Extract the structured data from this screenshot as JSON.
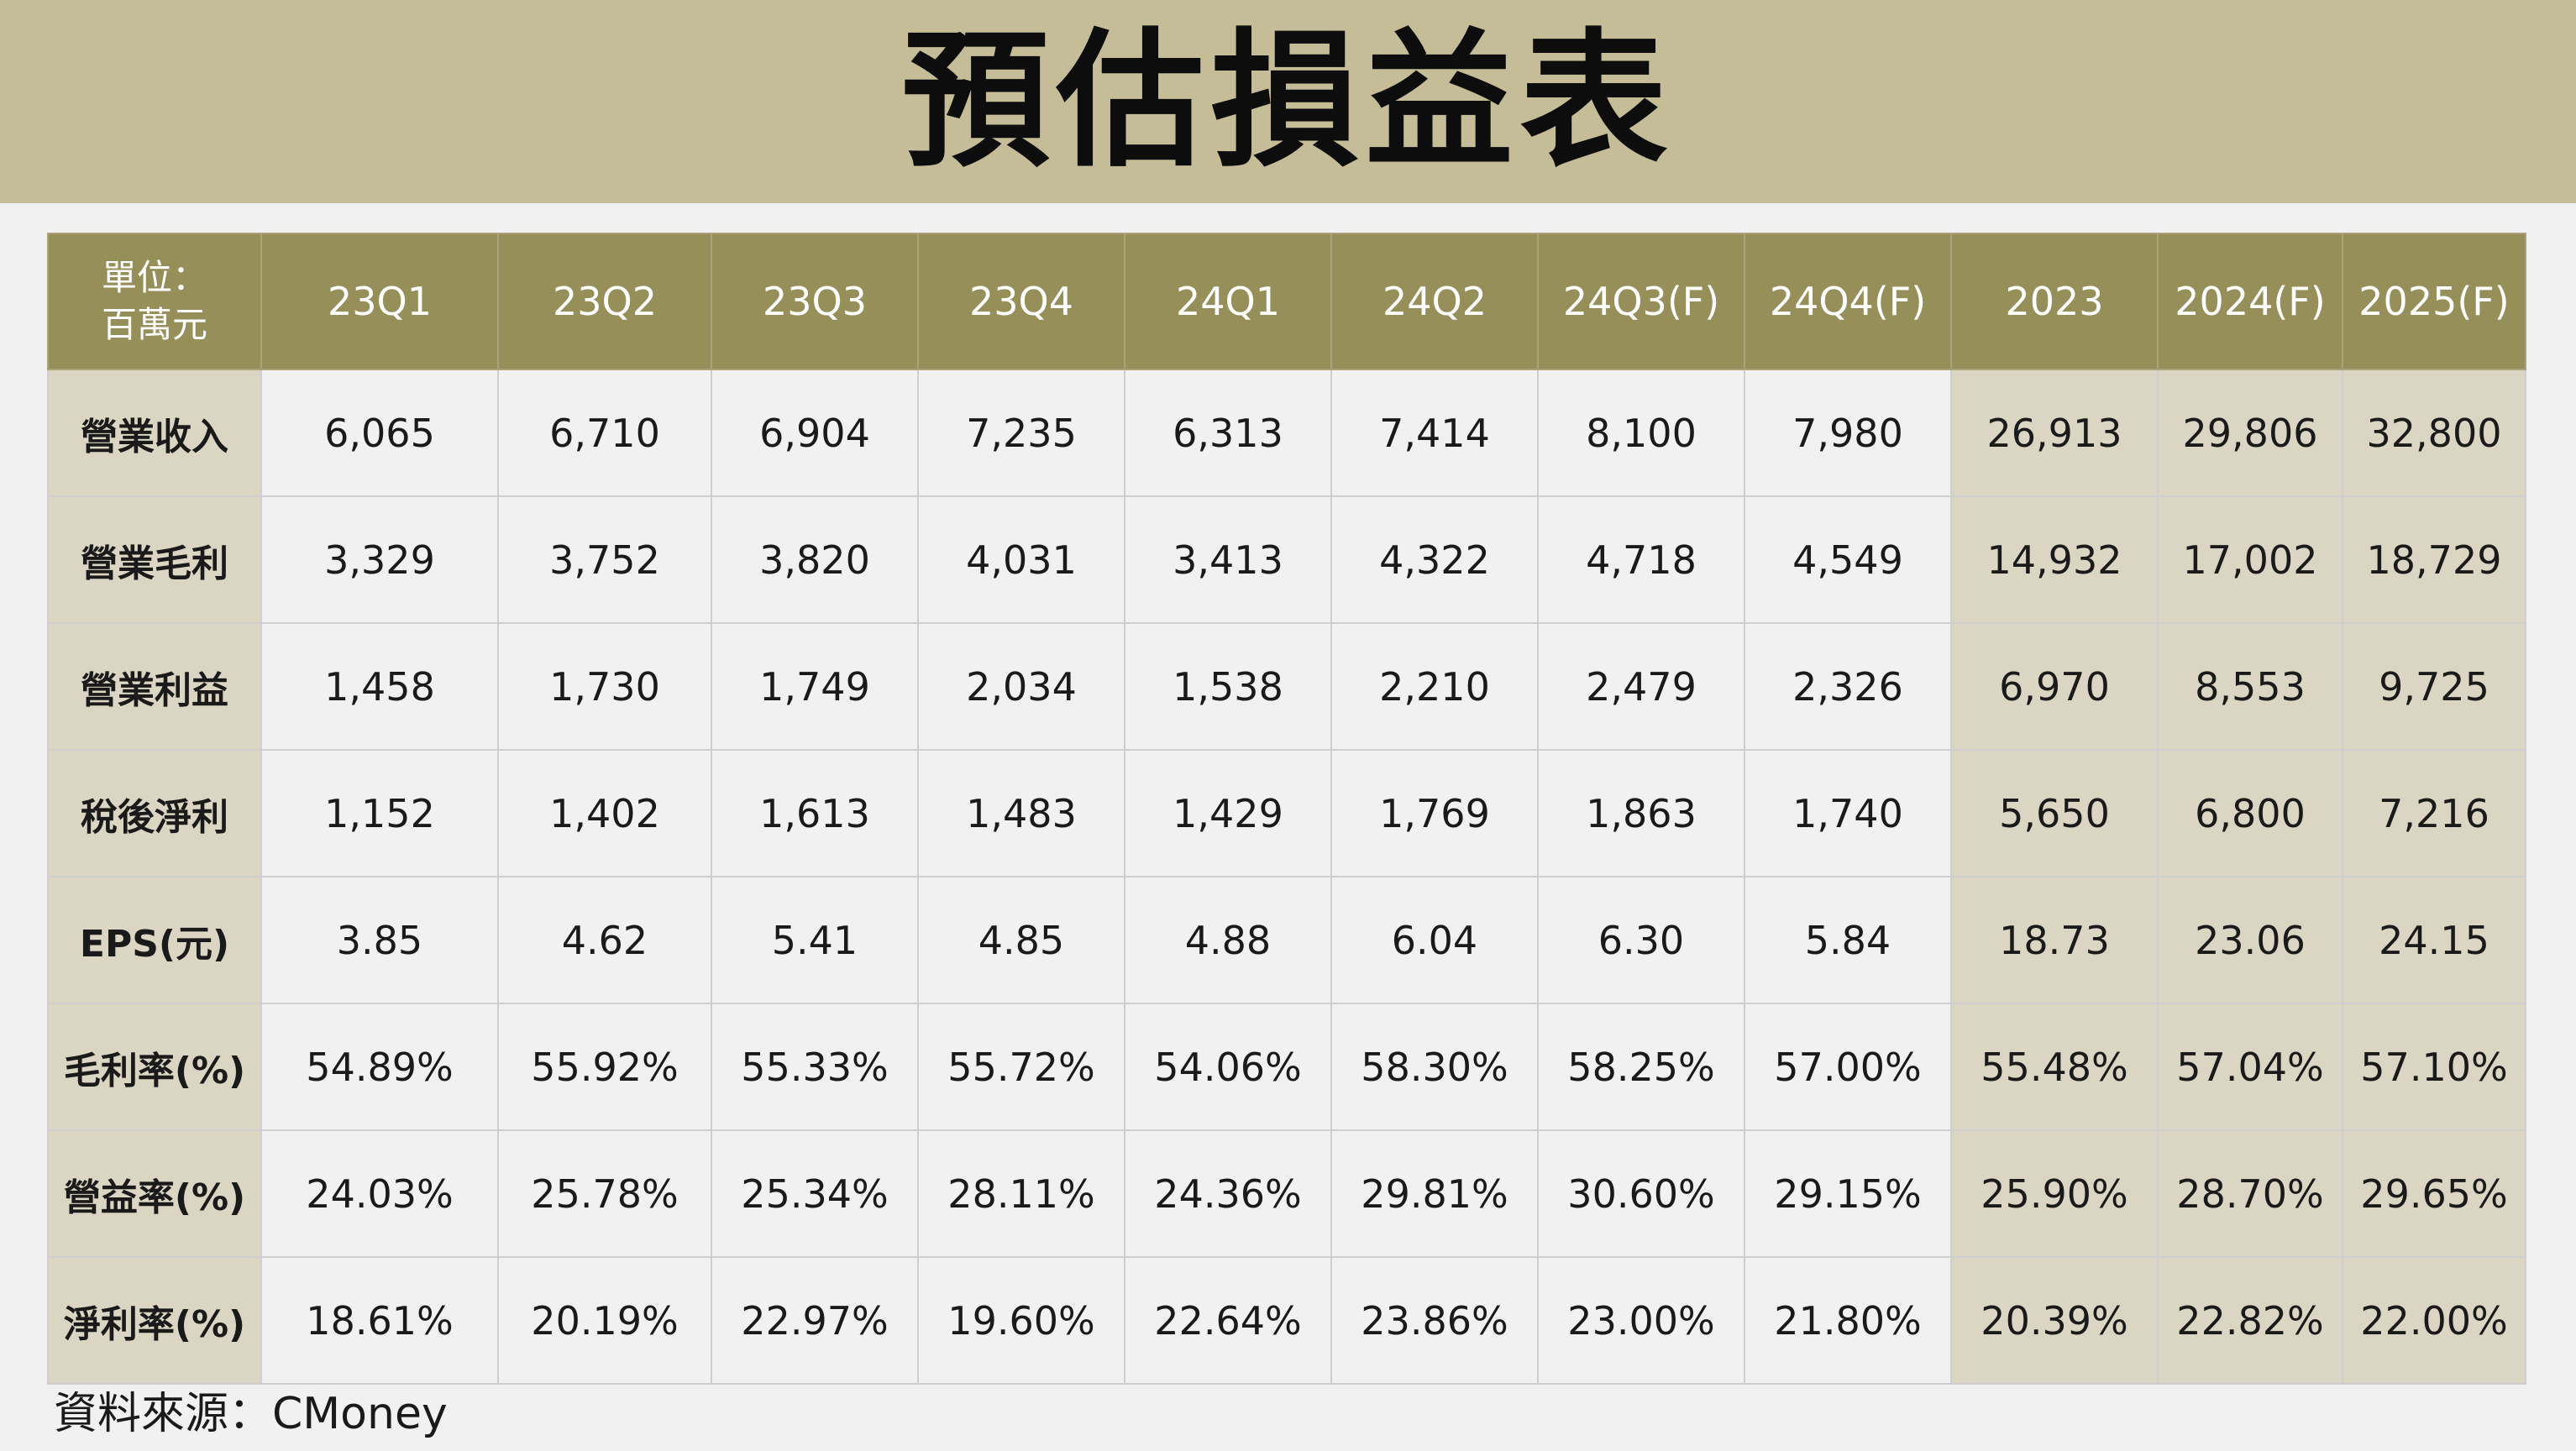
{
  "title": "預估損益表",
  "table": {
    "unit_line1": "單位：",
    "unit_line2": "百萬元",
    "columns": [
      "23Q1",
      "23Q2",
      "23Q3",
      "23Q4",
      "24Q1",
      "24Q2",
      "24Q3(F)",
      "24Q4(F)",
      "2023",
      "2024(F)",
      "2025(F)"
    ],
    "rows": [
      {
        "label": "營業收入",
        "values": [
          "6,065",
          "6,710",
          "6,904",
          "7,235",
          "6,313",
          "7,414",
          "8,100",
          "7,980",
          "26,913",
          "29,806",
          "32,800"
        ]
      },
      {
        "label": "營業毛利",
        "values": [
          "3,329",
          "3,752",
          "3,820",
          "4,031",
          "3,413",
          "4,322",
          "4,718",
          "4,549",
          "14,932",
          "17,002",
          "18,729"
        ]
      },
      {
        "label": "營業利益",
        "values": [
          "1,458",
          "1,730",
          "1,749",
          "2,034",
          "1,538",
          "2,210",
          "2,479",
          "2,326",
          "6,970",
          "8,553",
          "9,725"
        ]
      },
      {
        "label": "稅後淨利",
        "values": [
          "1,152",
          "1,402",
          "1,613",
          "1,483",
          "1,429",
          "1,769",
          "1,863",
          "1,740",
          "5,650",
          "6,800",
          "7,216"
        ]
      },
      {
        "label": "EPS(元)",
        "values": [
          "3.85",
          "4.62",
          "5.41",
          "4.85",
          "4.88",
          "6.04",
          "6.30",
          "5.84",
          "18.73",
          "23.06",
          "24.15"
        ]
      },
      {
        "label": "毛利率(%)",
        "values": [
          "54.89%",
          "55.92%",
          "55.33%",
          "55.72%",
          "54.06%",
          "58.30%",
          "58.25%",
          "57.00%",
          "55.48%",
          "57.04%",
          "57.10%"
        ]
      },
      {
        "label": "營益率(%)",
        "values": [
          "24.03%",
          "25.78%",
          "25.34%",
          "28.11%",
          "24.36%",
          "29.81%",
          "30.60%",
          "29.15%",
          "25.90%",
          "28.70%",
          "29.65%"
        ]
      },
      {
        "label": "淨利率(%)",
        "values": [
          "18.61%",
          "20.19%",
          "22.97%",
          "19.60%",
          "22.64%",
          "23.86%",
          "23.00%",
          "21.80%",
          "20.39%",
          "22.82%",
          "22.00%"
        ]
      }
    ]
  },
  "source": "資料來源：CMoney",
  "colors": {
    "header_band": "#c5bc98",
    "table_header": "#978f59",
    "label_and_annual_cells": "#dad6c3",
    "quarter_cells": "#f1f1f2"
  }
}
